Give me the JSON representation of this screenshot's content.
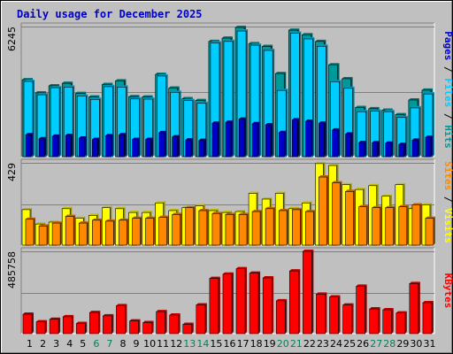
{
  "chart_data": {
    "type": "bar",
    "title": "Daily usage for December 2025",
    "categories": [
      "1",
      "2",
      "3",
      "4",
      "5",
      "6",
      "7",
      "8",
      "9",
      "10",
      "11",
      "12",
      "13",
      "14",
      "15",
      "16",
      "17",
      "18",
      "19",
      "20",
      "21",
      "22",
      "23",
      "24",
      "25",
      "26",
      "27",
      "28",
      "29",
      "30",
      "31"
    ],
    "weekend_days": [
      6,
      7,
      13,
      14,
      20,
      21,
      27,
      28
    ],
    "panels": [
      {
        "max_label": "6245",
        "ylim": [
          0,
          6245
        ],
        "legend": [
          "Pages",
          "Files",
          "Hits"
        ],
        "grid": true,
        "series": [
          {
            "name": "Hits",
            "color": "#009999",
            "values": [
              3690,
              3060,
              3400,
              3520,
              3030,
              2860,
              3460,
              3640,
              2880,
              2860,
              3950,
              3290,
              2780,
              2690,
              5530,
              5690,
              6200,
              5420,
              5290,
              3990,
              6070,
              5850,
              5530,
              4410,
              3740,
              2360,
              2300,
              2230,
              2010,
              2720,
              3190
            ]
          },
          {
            "name": "Files",
            "color": "#00ccff",
            "values": [
              3610,
              2970,
              3310,
              3340,
              2910,
              2750,
              3360,
              3340,
              2770,
              2760,
              3870,
              3090,
              2690,
              2560,
              5460,
              5530,
              6030,
              5350,
              5100,
              3180,
              5930,
              5650,
              5300,
              3600,
              3280,
              2160,
              2180,
              2160,
              1880,
              2340,
              3010
            ]
          },
          {
            "name": "Pages",
            "color": "#0000cc",
            "values": [
              1050,
              860,
              980,
              1020,
              890,
              830,
              1010,
              1050,
              830,
              830,
              1150,
              950,
              800,
              780,
              1610,
              1650,
              1800,
              1580,
              1530,
              1160,
              1770,
              1700,
              1610,
              1280,
              1090,
              680,
              670,
              650,
              590,
              790,
              930
            ]
          }
        ]
      },
      {
        "max_label": "429",
        "ylim": [
          0,
          429
        ],
        "legend": [
          "Sites",
          "Visits"
        ],
        "grid": true,
        "series": [
          {
            "name": "Visits",
            "color": "#ffff00",
            "values": [
              185,
              110,
              120,
              190,
              140,
              155,
              195,
              190,
              170,
              170,
              220,
              180,
              195,
              205,
              180,
              170,
              175,
              270,
              240,
              270,
              190,
              220,
              425,
              415,
              315,
              290,
              310,
              255,
              315,
              190,
              210
            ]
          },
          {
            "name": "Sites",
            "color": "#ff8800",
            "values": [
              135,
              100,
              115,
              150,
              115,
              130,
              125,
              130,
              140,
              140,
              145,
              160,
              195,
              180,
              165,
              160,
              160,
              175,
              190,
              180,
              185,
              175,
              355,
              325,
              280,
              200,
              195,
              195,
              200,
              210,
              140
            ]
          }
        ]
      },
      {
        "max_label": "485758",
        "ylim": [
          0,
          485758
        ],
        "legend": [
          "KBytes"
        ],
        "grid": true,
        "series": [
          {
            "name": "KBytes",
            "color": "#ff0000",
            "values": [
              115000,
              70000,
              85000,
              100000,
              60000,
              125000,
              105000,
              165000,
              75000,
              65000,
              130000,
              110000,
              55000,
              170000,
              326000,
              351000,
              383000,
              357000,
              329000,
              194000,
              370000,
              485758,
              233000,
              217000,
              169000,
              280000,
              146000,
              141000,
              122000,
              296000,
              183000
            ]
          }
        ]
      }
    ]
  },
  "colors": {
    "frame_bg": "#c0c0c0",
    "plot_bg": "#c0c0c0",
    "title": "#0000cc",
    "weekend_tick": "#00805c",
    "weekday_tick": "#000000",
    "max_label": "#000000"
  }
}
